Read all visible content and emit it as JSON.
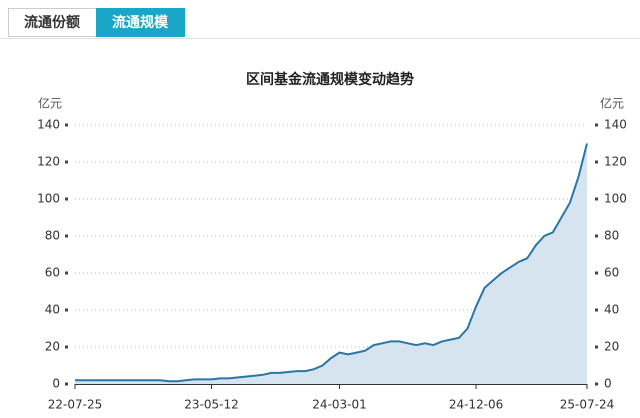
{
  "tabs": [
    {
      "label": "流通份额",
      "active": false
    },
    {
      "label": "流通规模",
      "active": true
    }
  ],
  "chart_data": {
    "type": "area",
    "title": "区间基金流通规模变动趋势",
    "y_label": "亿元",
    "y2_label": "亿元",
    "categories": [
      "22-07-25",
      null,
      null,
      null,
      null,
      null,
      null,
      null,
      null,
      null,
      null,
      null,
      null,
      null,
      null,
      null,
      "23-05-12",
      null,
      null,
      null,
      null,
      null,
      null,
      null,
      null,
      null,
      null,
      null,
      null,
      null,
      null,
      "24-03-01",
      null,
      null,
      null,
      null,
      null,
      null,
      null,
      null,
      null,
      null,
      null,
      null,
      null,
      null,
      null,
      "24-12-06",
      null,
      null,
      null,
      null,
      null,
      null,
      null,
      null,
      null,
      null,
      null,
      null,
      "25-07-24"
    ],
    "series": [
      {
        "name": "流通规模",
        "color": "#2b77a3",
        "fill": "#d6e4ef",
        "values": [
          2,
          2,
          2,
          2,
          2,
          2,
          2,
          2,
          2,
          2,
          2,
          1.5,
          1.5,
          2,
          2.5,
          2.5,
          2.5,
          3,
          3,
          3.5,
          4,
          4.5,
          5,
          6,
          6,
          6.5,
          7,
          7,
          8,
          10,
          14,
          17,
          16,
          17,
          18,
          21,
          22,
          23,
          23,
          22,
          21,
          22,
          21,
          23,
          24,
          25,
          30,
          42,
          52,
          56,
          60,
          63,
          66,
          68,
          75,
          80,
          82,
          90,
          98,
          112,
          130
        ]
      }
    ],
    "ylim": [
      0,
      140
    ],
    "yticks": [
      0,
      20,
      40,
      60,
      80,
      100,
      120,
      140
    ],
    "y2lim": [
      0,
      140
    ],
    "y2ticks": [
      0,
      20,
      40,
      60,
      80,
      100,
      120,
      140
    ],
    "grid": true
  }
}
